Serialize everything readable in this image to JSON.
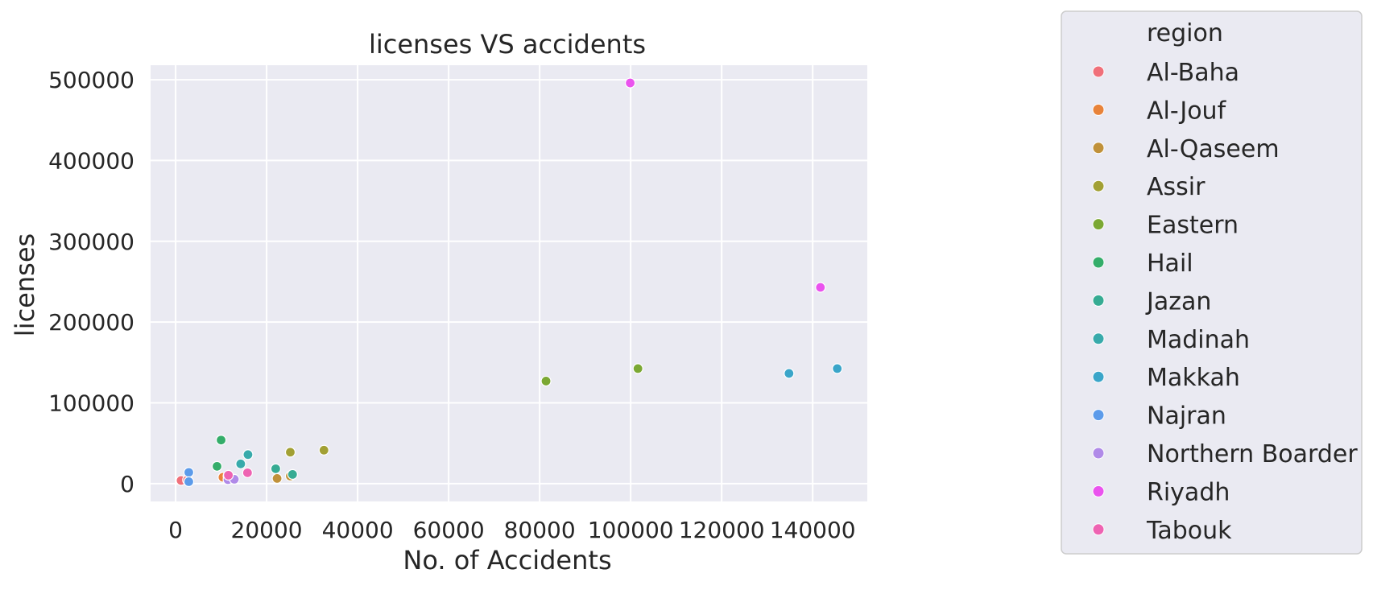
{
  "chart_data": {
    "type": "scatter",
    "title": "licenses VS accidents",
    "xlabel": "No. of Accidents",
    "ylabel": "licenses",
    "xlim": [
      -5500,
      152000
    ],
    "ylim": [
      -22000,
      518000
    ],
    "xticks": [
      0,
      20000,
      40000,
      60000,
      80000,
      100000,
      120000,
      140000
    ],
    "yticks": [
      0,
      100000,
      200000,
      300000,
      400000,
      500000
    ],
    "grid": true,
    "legend": {
      "title": "region",
      "position": "outside-right"
    },
    "series": [
      {
        "name": "Al-Baha",
        "color": "#f0707a",
        "points": [
          [
            1200,
            4000
          ],
          [
            2600,
            4500
          ]
        ]
      },
      {
        "name": "Al-Jouf",
        "color": "#e8833a",
        "points": [
          [
            10400,
            8000
          ],
          [
            11500,
            9500
          ]
        ]
      },
      {
        "name": "Al-Qaseem",
        "color": "#c0913a",
        "points": [
          [
            22300,
            6500
          ],
          [
            25200,
            9500
          ]
        ]
      },
      {
        "name": "Assir",
        "color": "#a2a034",
        "points": [
          [
            25200,
            39000
          ],
          [
            32600,
            41500
          ]
        ]
      },
      {
        "name": "Eastern",
        "color": "#7ba833",
        "points": [
          [
            81400,
            127000
          ],
          [
            101600,
            142500
          ]
        ]
      },
      {
        "name": "Hail",
        "color": "#34ad6a",
        "points": [
          [
            9100,
            21500
          ],
          [
            10000,
            54000
          ]
        ]
      },
      {
        "name": "Jazan",
        "color": "#36ab93",
        "points": [
          [
            22000,
            18500
          ],
          [
            25700,
            11500
          ]
        ]
      },
      {
        "name": "Madinah",
        "color": "#38aaab",
        "points": [
          [
            14300,
            24500
          ],
          [
            15900,
            36000
          ]
        ]
      },
      {
        "name": "Makkah",
        "color": "#3aa5c9",
        "points": [
          [
            134800,
            136500
          ],
          [
            145400,
            142500
          ]
        ]
      },
      {
        "name": "Najran",
        "color": "#5c9bea",
        "points": [
          [
            2900,
            14000
          ],
          [
            2900,
            2500
          ]
        ]
      },
      {
        "name": "Northern Boarder",
        "color": "#b08ae8",
        "points": [
          [
            11500,
            5000
          ],
          [
            12900,
            5500
          ]
        ]
      },
      {
        "name": "Riyadh",
        "color": "#ea53ee",
        "points": [
          [
            99900,
            496000
          ],
          [
            141700,
            243000
          ]
        ]
      },
      {
        "name": "Tabouk",
        "color": "#ee63b2",
        "points": [
          [
            11600,
            10500
          ],
          [
            15800,
            13500
          ]
        ]
      }
    ]
  }
}
